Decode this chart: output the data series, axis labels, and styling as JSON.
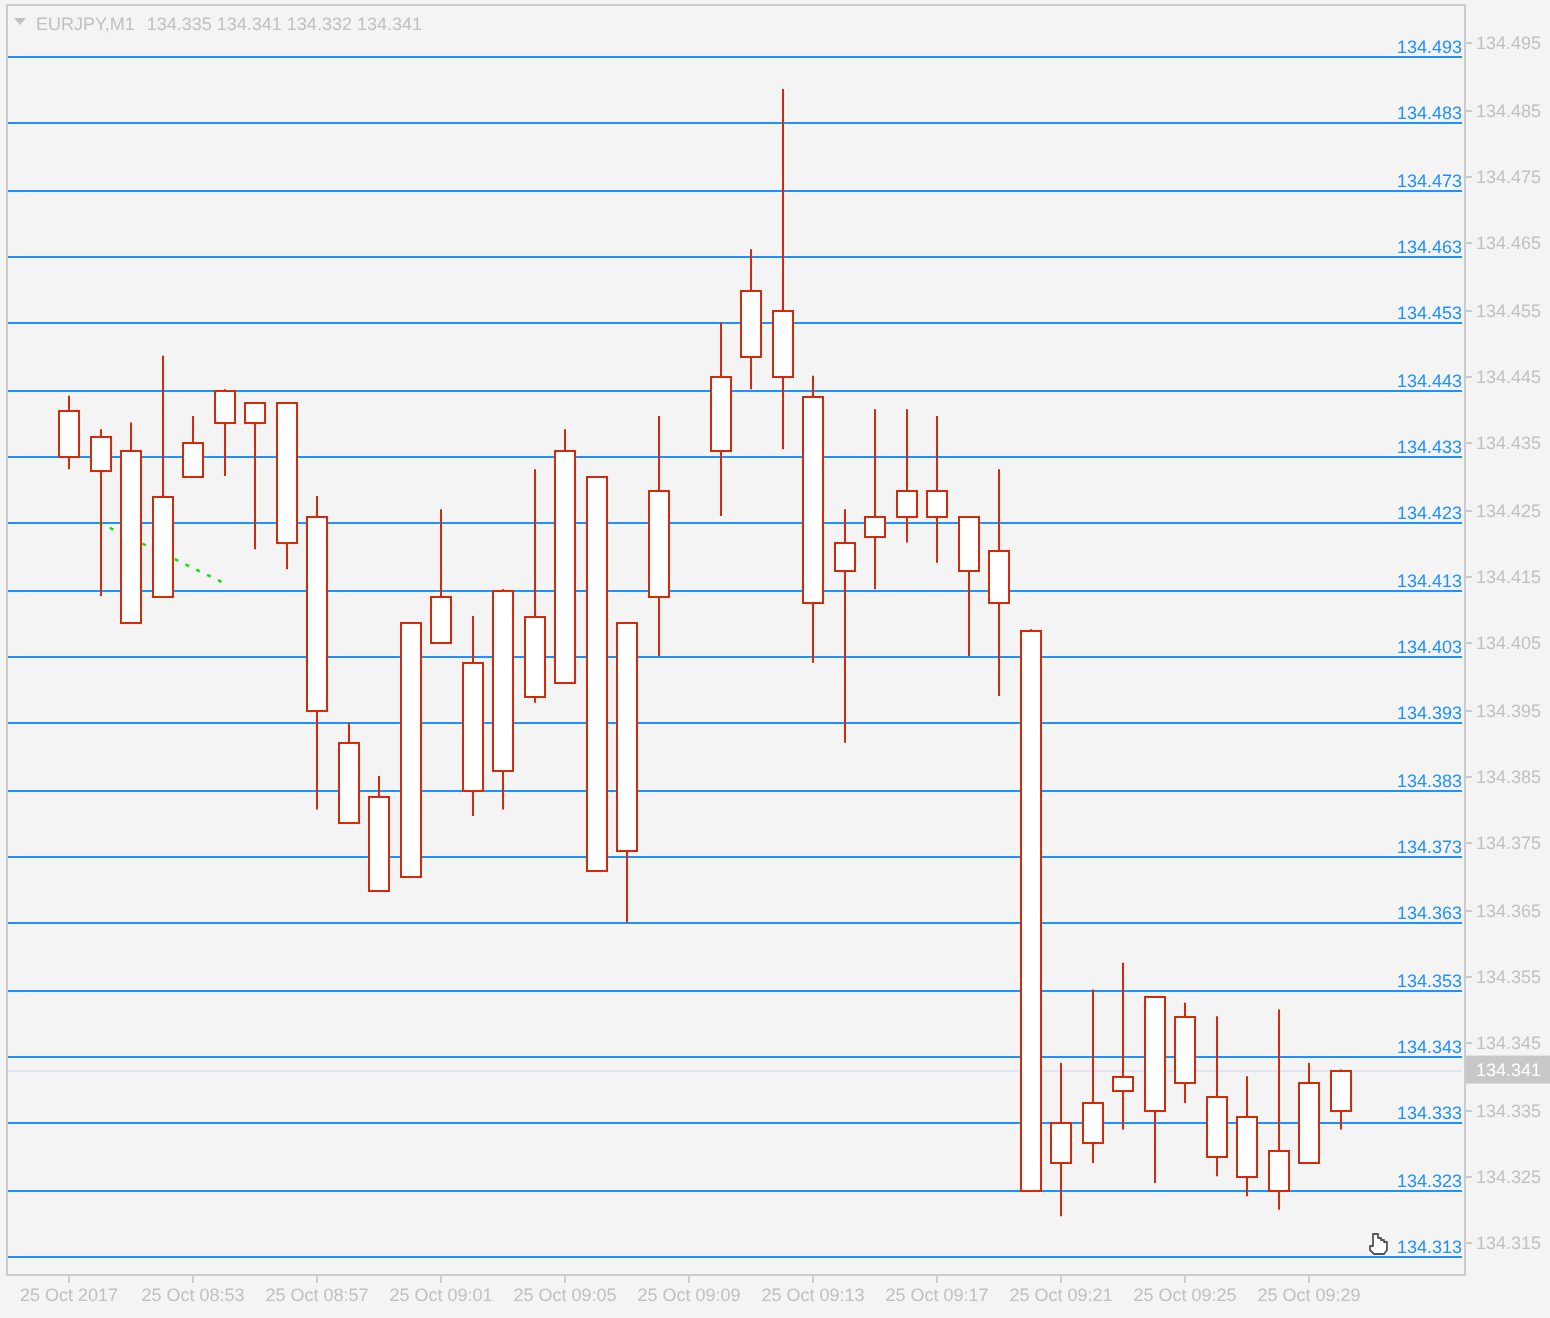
{
  "chart_data": {
    "type": "candlestick",
    "title": "EURJPY,M1",
    "subtitle": "134.335 134.341 134.332 134.341",
    "x": [
      "2017-10-25T08:49",
      "2017-10-25T08:50",
      "2017-10-25T08:51",
      "2017-10-25T08:52",
      "2017-10-25T08:53",
      "2017-10-25T08:54",
      "2017-10-25T08:55",
      "2017-10-25T08:56",
      "2017-10-25T08:57",
      "2017-10-25T08:58",
      "2017-10-25T08:59",
      "2017-10-25T09:00",
      "2017-10-25T09:01",
      "2017-10-25T09:02",
      "2017-10-25T09:03",
      "2017-10-25T09:04",
      "2017-10-25T09:05",
      "2017-10-25T09:06",
      "2017-10-25T09:07",
      "2017-10-25T09:08",
      "2017-10-25T09:10",
      "2017-10-25T09:11",
      "2017-10-25T09:12",
      "2017-10-25T09:13",
      "2017-10-25T09:14",
      "2017-10-25T09:15",
      "2017-10-25T09:16",
      "2017-10-25T09:17",
      "2017-10-25T09:18",
      "2017-10-25T09:19",
      "2017-10-25T09:20",
      "2017-10-25T09:21",
      "2017-10-25T09:22",
      "2017-10-25T09:23",
      "2017-10-25T09:24",
      "2017-10-25T09:25",
      "2017-10-25T09:26",
      "2017-10-25T09:27",
      "2017-10-25T09:28",
      "2017-10-25T09:29",
      "2017-10-25T09:30"
    ],
    "ohlc": [
      [
        134.433,
        134.442,
        134.431,
        134.44
      ],
      [
        134.431,
        134.437,
        134.412,
        134.436
      ],
      [
        134.408,
        134.438,
        134.408,
        134.434
      ],
      [
        134.412,
        134.448,
        134.412,
        134.427
      ],
      [
        134.43,
        134.439,
        134.43,
        134.435
      ],
      [
        134.438,
        134.443,
        134.43,
        134.443
      ],
      [
        134.438,
        134.441,
        134.419,
        134.441
      ],
      [
        134.42,
        134.441,
        134.416,
        134.441
      ],
      [
        134.395,
        134.427,
        134.38,
        134.424
      ],
      [
        134.378,
        134.393,
        134.378,
        134.39
      ],
      [
        134.368,
        134.385,
        134.368,
        134.382
      ],
      [
        134.37,
        134.408,
        134.37,
        134.408
      ],
      [
        134.405,
        134.425,
        134.405,
        134.412
      ],
      [
        134.383,
        134.409,
        134.379,
        134.402
      ],
      [
        134.386,
        134.413,
        134.38,
        134.413
      ],
      [
        134.397,
        134.431,
        134.396,
        134.409
      ],
      [
        134.399,
        134.437,
        134.399,
        134.434
      ],
      [
        134.371,
        134.43,
        134.371,
        134.43
      ],
      [
        134.374,
        134.408,
        134.363,
        134.408
      ],
      [
        134.412,
        134.439,
        134.403,
        134.428
      ],
      [
        134.434,
        134.453,
        134.424,
        134.445
      ],
      [
        134.448,
        134.464,
        134.443,
        134.458
      ],
      [
        134.445,
        134.488,
        134.434,
        134.455
      ],
      [
        134.411,
        134.445,
        134.402,
        134.442
      ],
      [
        134.416,
        134.425,
        134.39,
        134.42
      ],
      [
        134.421,
        134.44,
        134.413,
        134.424
      ],
      [
        134.424,
        134.44,
        134.42,
        134.428
      ],
      [
        134.424,
        134.439,
        134.417,
        134.428
      ],
      [
        134.416,
        134.424,
        134.403,
        134.424
      ],
      [
        134.411,
        134.431,
        134.397,
        134.419
      ],
      [
        134.323,
        134.407,
        134.323,
        134.407
      ],
      [
        134.327,
        134.342,
        134.319,
        134.333
      ],
      [
        134.33,
        134.353,
        134.327,
        134.336
      ],
      [
        134.338,
        134.357,
        134.332,
        134.34
      ],
      [
        134.335,
        134.352,
        134.324,
        134.352
      ],
      [
        134.339,
        134.351,
        134.336,
        134.349
      ],
      [
        134.328,
        134.349,
        134.325,
        134.337
      ],
      [
        134.325,
        134.34,
        134.322,
        134.334
      ],
      [
        134.323,
        134.35,
        134.32,
        134.329
      ],
      [
        134.327,
        134.342,
        134.327,
        134.339
      ],
      [
        134.335,
        134.341,
        134.332,
        134.341
      ]
    ],
    "color": "#d22a0a",
    "series": [
      {
        "type": "line",
        "x": [
          "2017-10-25T08:50",
          "2017-10-25T08:54"
        ],
        "values": [
          134.423,
          134.414
        ],
        "color": "#11dd11",
        "line_style": "dashed"
      }
    ],
    "xlim": [
      "2017-10-25T08:47",
      "2017-10-25T09:34"
    ],
    "xticks": [
      {
        "value": "2017-10-25T08:49",
        "label": "25 Oct 2017"
      },
      {
        "value": "2017-10-25T08:53",
        "label": "25 Oct 08:53"
      },
      {
        "value": "2017-10-25T08:57",
        "label": "25 Oct 08:57"
      },
      {
        "value": "2017-10-25T09:01",
        "label": "25 Oct 09:01"
      },
      {
        "value": "2017-10-25T09:05",
        "label": "25 Oct 09:05"
      },
      {
        "value": "2017-10-25T09:09",
        "label": "25 Oct 09:09"
      },
      {
        "value": "2017-10-25T09:13",
        "label": "25 Oct 09:13"
      },
      {
        "value": "2017-10-25T09:17",
        "label": "25 Oct 09:17"
      },
      {
        "value": "2017-10-25T09:21",
        "label": "25 Oct 09:21"
      },
      {
        "value": "2017-10-25T09:25",
        "label": "25 Oct 09:25"
      },
      {
        "value": "2017-10-25T09:29",
        "label": "25 Oct 09:29"
      }
    ],
    "ylim": [
      134.3102,
      134.5006
    ],
    "yticks": [
      134.315,
      134.325,
      134.335,
      134.345,
      134.355,
      134.365,
      134.375,
      134.385,
      134.395,
      134.405,
      134.415,
      134.425,
      134.435,
      134.445,
      134.455,
      134.465,
      134.475,
      134.485,
      134.495
    ],
    "ref_lines": [
      {
        "axis": "y",
        "value": 134.493,
        "label": "134.493",
        "color": "#1e90ff"
      },
      {
        "axis": "y",
        "value": 134.483,
        "label": "134.483",
        "color": "#1e90ff"
      },
      {
        "axis": "y",
        "value": 134.473,
        "label": "134.473",
        "color": "#1e90ff"
      },
      {
        "axis": "y",
        "value": 134.463,
        "label": "134.463",
        "color": "#1e90ff"
      },
      {
        "axis": "y",
        "value": 134.453,
        "label": "134.453",
        "color": "#1e90ff"
      },
      {
        "axis": "y",
        "value": 134.443,
        "label": "134.443",
        "color": "#1e90ff"
      },
      {
        "axis": "y",
        "value": 134.433,
        "label": "134.433",
        "color": "#1e90ff"
      },
      {
        "axis": "y",
        "value": 134.423,
        "label": "134.423",
        "color": "#1e90ff"
      },
      {
        "axis": "y",
        "value": 134.413,
        "label": "134.413",
        "color": "#1e90ff"
      },
      {
        "axis": "y",
        "value": 134.403,
        "label": "134.403",
        "color": "#1e90ff"
      },
      {
        "axis": "y",
        "value": 134.393,
        "label": "134.393",
        "color": "#1e90ff"
      },
      {
        "axis": "y",
        "value": 134.383,
        "label": "134.383",
        "color": "#1e90ff"
      },
      {
        "axis": "y",
        "value": 134.373,
        "label": "134.373",
        "color": "#1e90ff"
      },
      {
        "axis": "y",
        "value": 134.363,
        "label": "134.363",
        "color": "#1e90ff"
      },
      {
        "axis": "y",
        "value": 134.353,
        "label": "134.353",
        "color": "#1e90ff"
      },
      {
        "axis": "y",
        "value": 134.343,
        "label": "134.343",
        "color": "#1e90ff"
      },
      {
        "axis": "y",
        "value": 134.333,
        "label": "134.333",
        "color": "#1e90ff"
      },
      {
        "axis": "y",
        "value": 134.323,
        "label": "134.323",
        "color": "#1e90ff"
      },
      {
        "axis": "y",
        "value": 134.313,
        "label": "134.313",
        "color": "#1e90ff"
      },
      {
        "axis": "y",
        "value": 134.341,
        "color": "#e2e2f8"
      }
    ],
    "annotations": [
      {
        "text": "134.341",
        "y": 134.341
      }
    ]
  }
}
